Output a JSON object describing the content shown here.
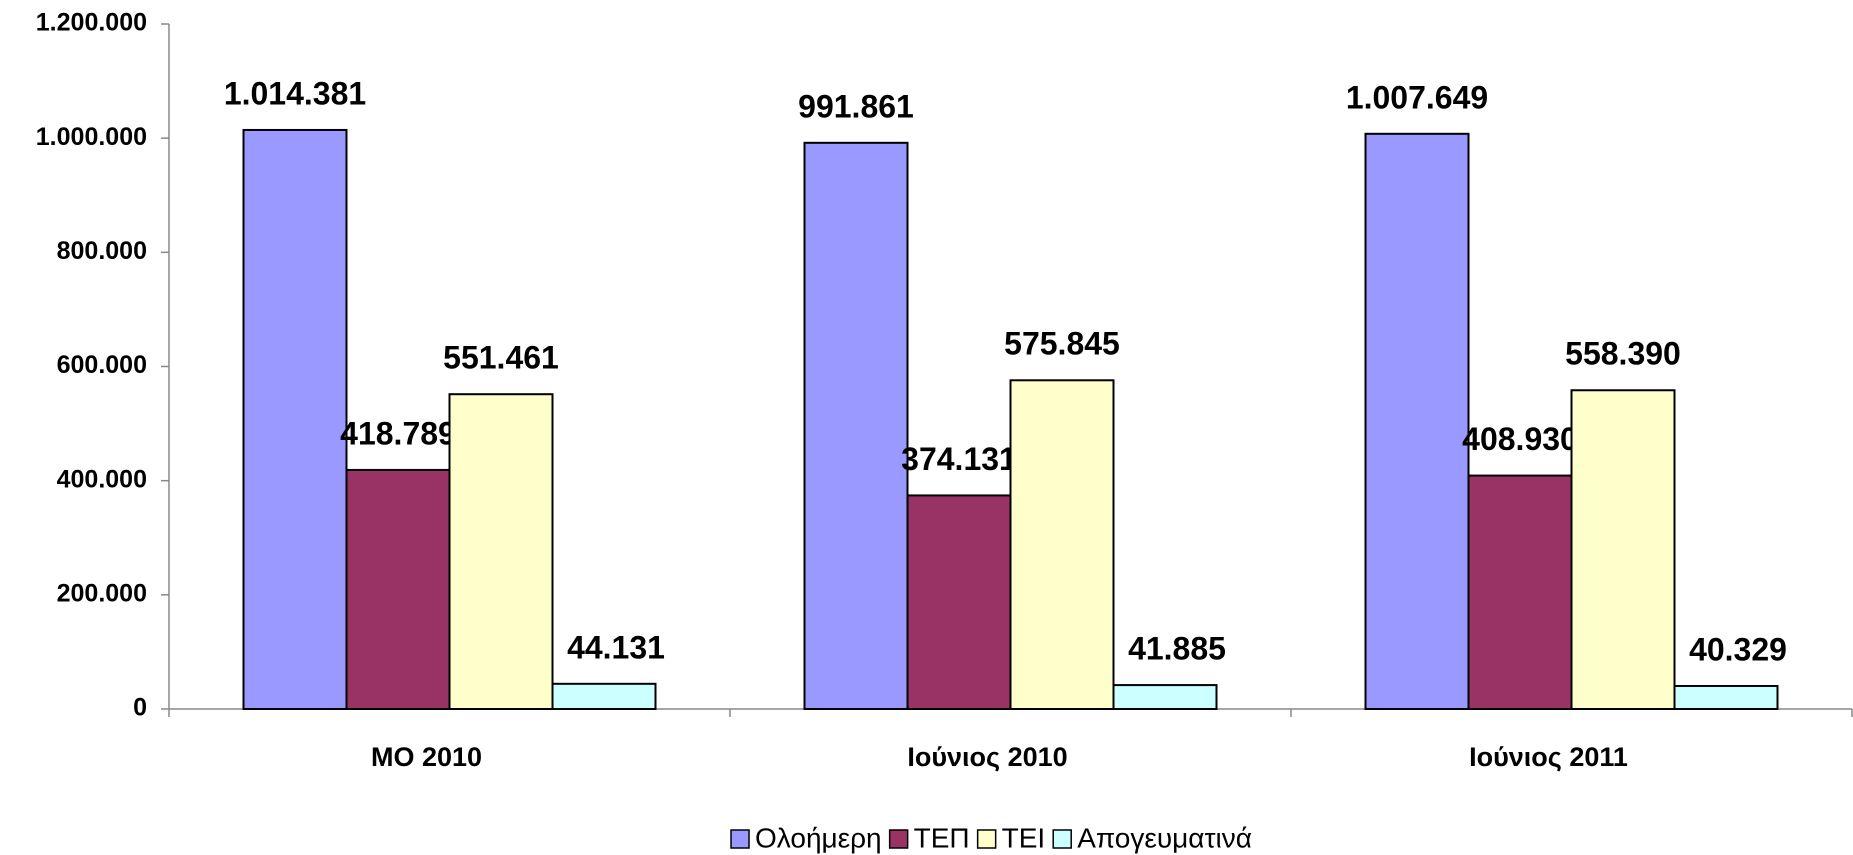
{
  "chart_data": {
    "type": "bar",
    "categories": [
      "ΜΟ 2010",
      "Ιούνιος 2010",
      "Ιούνιος 2011"
    ],
    "series": [
      {
        "name": "Ολοήμερη",
        "color": "#9999ff",
        "values": [
          1014381,
          991861,
          1007649
        ],
        "value_labels": [
          "1.014.381",
          "991.861",
          "1.007.649"
        ]
      },
      {
        "name": "ΤΕΠ",
        "color": "#993366",
        "values": [
          418789,
          374131,
          408930
        ],
        "value_labels": [
          "418.789",
          "374.131",
          "408.930"
        ]
      },
      {
        "name": "ΤΕΙ",
        "color": "#ffffcc",
        "values": [
          551461,
          575845,
          558390
        ],
        "value_labels": [
          "551.461",
          "575.845",
          "558.390"
        ]
      },
      {
        "name": "Απογευματινά",
        "color": "#ccffff",
        "values": [
          44131,
          41885,
          40329
        ],
        "value_labels": [
          "44.131",
          "41.885",
          "40.329"
        ]
      }
    ],
    "ylim": [
      0,
      1200000
    ],
    "yticks": [
      0,
      {
        "value": 200000,
        "label": "200.000"
      },
      {
        "value": 400000,
        "label": "400.000"
      },
      {
        "value": 600000,
        "label": "600.000"
      },
      {
        "value": 800000,
        "label": "800.000"
      },
      {
        "value": 1000000,
        "label": "1.000.000"
      },
      {
        "value": 1200000,
        "label": "1.200.000"
      }
    ],
    "legend": "bottom"
  }
}
